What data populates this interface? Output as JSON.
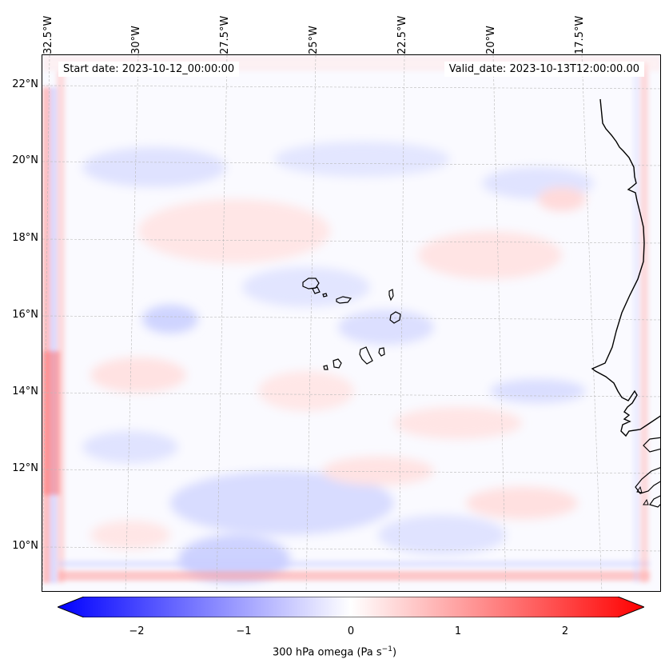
{
  "map": {
    "start_date": "Start date: 2023-10-12_00:00:00",
    "valid_date": "Valid_date: 2023-10-13T12:00:00.00",
    "lon_labels": [
      "32.5°W",
      "30°W",
      "27.5°W",
      "25°W",
      "22.5°W",
      "20°W",
      "17.5°W"
    ],
    "lat_labels": [
      "22°N",
      "20°N",
      "18°N",
      "16°N",
      "14°N",
      "12°N",
      "10°N"
    ],
    "features": {
      "coastline": "coastline-west-africa",
      "islands": "cape-verde-islands"
    }
  },
  "colorbar": {
    "label": "300 hPa omega (Pa s",
    "label_superscript": "−1",
    "label_suffix": ")",
    "ticks": [
      "−2",
      "−1",
      "0",
      "1",
      "2"
    ],
    "range": [
      -2.6,
      2.6
    ],
    "colormap": "bwr",
    "colors": {
      "min": "#0000ff",
      "mid": "#ffffff",
      "max": "#ff0000"
    }
  }
}
